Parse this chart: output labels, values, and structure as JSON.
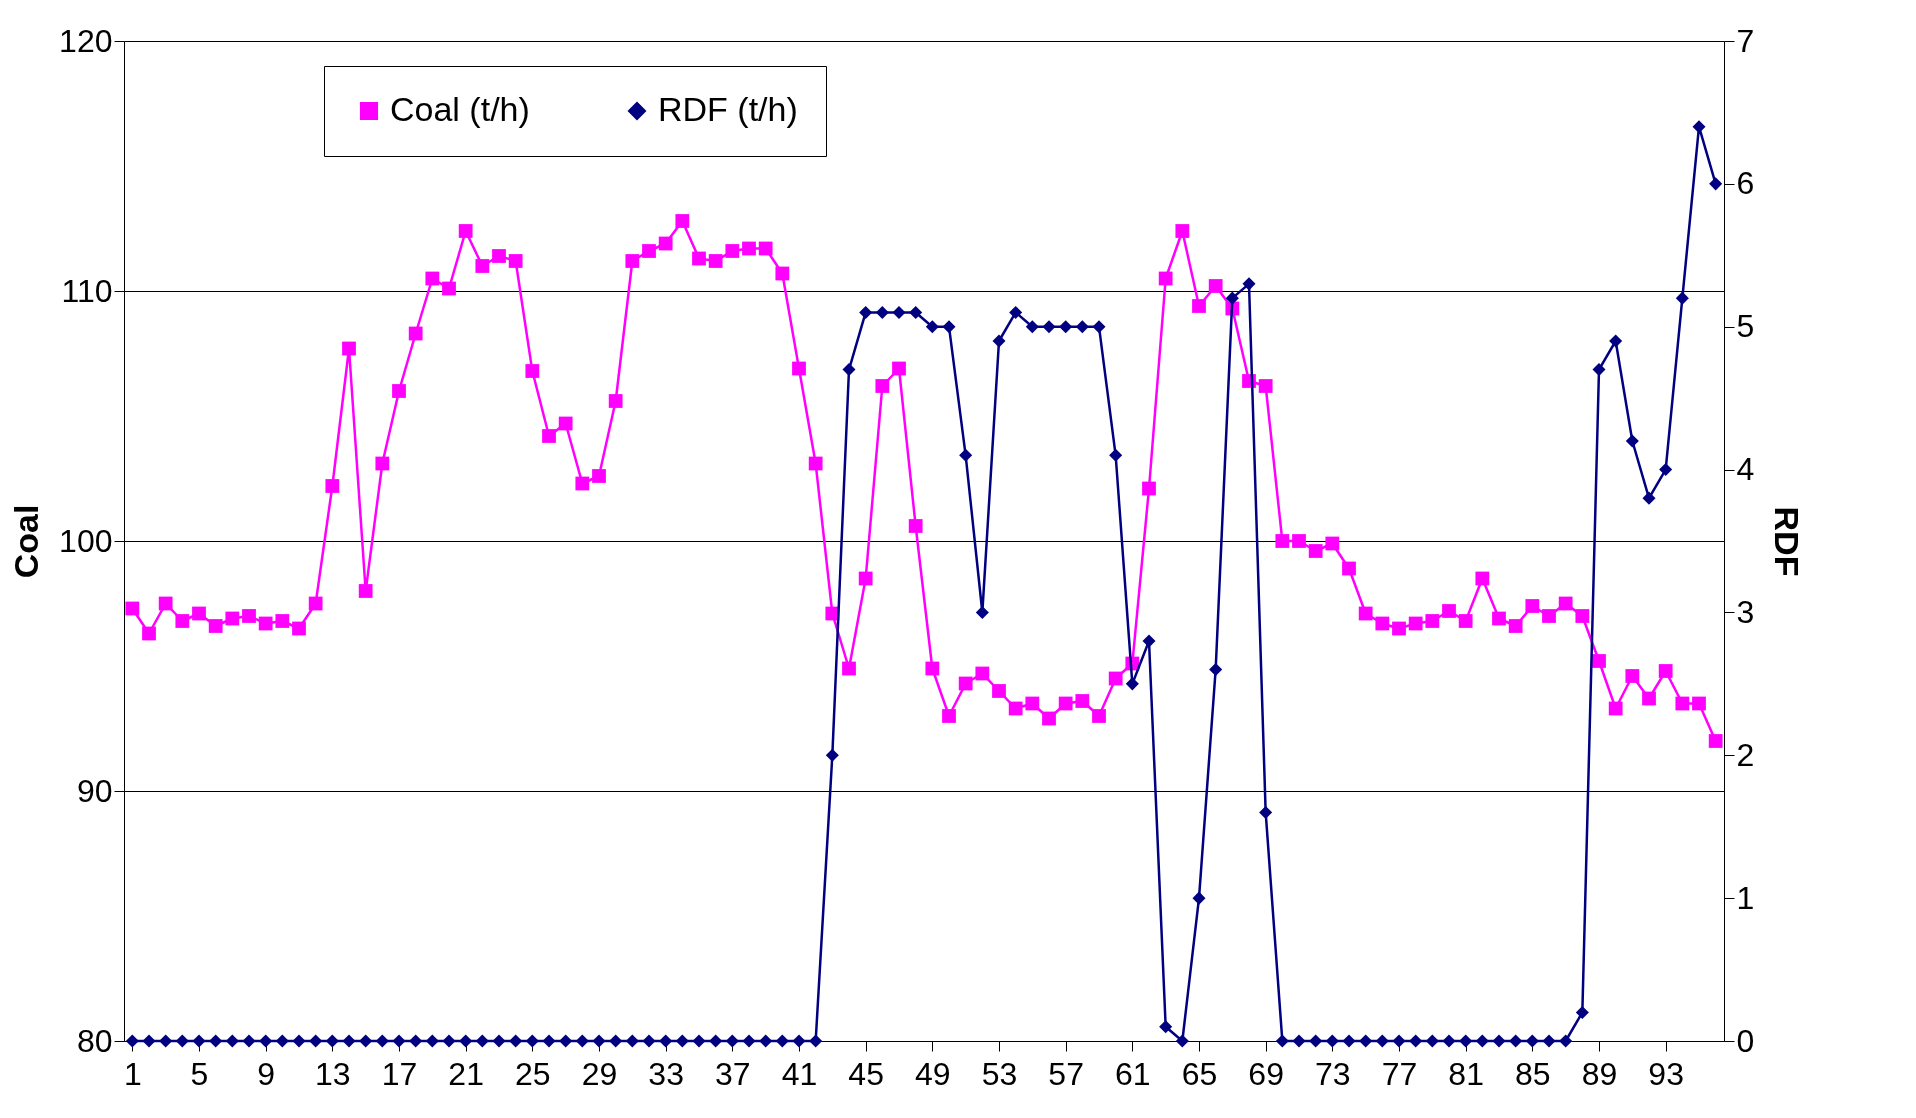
{
  "chart_data": {
    "type": "line",
    "x": [
      1,
      2,
      3,
      4,
      5,
      6,
      7,
      8,
      9,
      10,
      11,
      12,
      13,
      14,
      15,
      16,
      17,
      18,
      19,
      20,
      21,
      22,
      23,
      24,
      25,
      26,
      27,
      28,
      29,
      30,
      31,
      32,
      33,
      34,
      35,
      36,
      37,
      38,
      39,
      40,
      41,
      42,
      43,
      44,
      45,
      46,
      47,
      48,
      49,
      50,
      51,
      52,
      53,
      54,
      55,
      56,
      57,
      58,
      59,
      60,
      61,
      62,
      63,
      64,
      65,
      66,
      67,
      68,
      69,
      70,
      71,
      72,
      73,
      74,
      75,
      76,
      77,
      78,
      79,
      80,
      81,
      82,
      83,
      84,
      85,
      86,
      87,
      88,
      89,
      90,
      91,
      92,
      93,
      94,
      95,
      96
    ],
    "xlim": [
      0.5,
      96.5
    ],
    "xticks": [
      1,
      5,
      9,
      13,
      17,
      21,
      25,
      29,
      33,
      37,
      41,
      45,
      49,
      53,
      57,
      61,
      65,
      69,
      73,
      77,
      81,
      85,
      89,
      93
    ],
    "ylabel": "Coal",
    "y2label": "RDF",
    "ylim": [
      80,
      120
    ],
    "yticks": [
      80,
      90,
      100,
      110,
      120
    ],
    "y2lim": [
      0,
      7
    ],
    "y2ticks": [
      0,
      1,
      2,
      3,
      4,
      5,
      6,
      7
    ],
    "grid": "y",
    "legend": "top",
    "series": [
      {
        "name": "Coal (t/h)",
        "color": "#ff00ff",
        "marker": "square",
        "values": [
          97.3,
          96.3,
          97.5,
          96.8,
          97.1,
          96.6,
          96.9,
          97.0,
          96.7,
          96.8,
          96.5,
          97.5,
          102.2,
          107.7,
          98.0,
          103.1,
          106.0,
          108.3,
          110.5,
          110.1,
          112.4,
          111.0,
          111.4,
          111.2,
          106.8,
          104.2,
          104.7,
          102.3,
          102.6,
          105.6,
          111.2,
          111.6,
          111.9,
          112.8,
          111.3,
          111.2,
          111.6,
          111.7,
          111.7,
          110.7,
          106.9,
          103.1,
          97.1,
          94.9,
          98.5,
          106.2,
          106.9,
          100.6,
          94.9,
          93.0,
          94.3,
          94.7,
          94.0,
          93.3,
          93.5,
          92.9,
          93.5,
          93.6,
          93.0,
          94.5,
          95.1,
          102.1,
          110.5,
          112.4,
          109.4,
          110.2,
          109.3,
          106.4,
          106.2,
          100.0,
          100.0,
          99.6,
          99.9,
          98.9,
          97.1,
          96.7,
          96.5,
          96.7,
          96.8,
          97.2,
          96.8,
          98.5,
          96.9,
          96.6,
          97.4,
          97.0,
          97.5,
          97.0,
          95.2,
          93.3,
          94.6,
          93.7,
          94.8,
          93.5,
          93.5,
          92.0
        ]
      },
      {
        "name": "RDF (t/h)",
        "color": "#000080",
        "marker": "diamond",
        "axis": "y2",
        "values": [
          0,
          0,
          0,
          0,
          0,
          0,
          0,
          0,
          0,
          0,
          0,
          0,
          0,
          0,
          0,
          0,
          0,
          0,
          0,
          0,
          0,
          0,
          0,
          0,
          0,
          0,
          0,
          0,
          0,
          0,
          0,
          0,
          0,
          0,
          0,
          0,
          0,
          0,
          0,
          0,
          0,
          0,
          2.0,
          4.7,
          5.1,
          5.1,
          5.1,
          5.1,
          5.0,
          5.0,
          4.1,
          3.0,
          4.9,
          5.1,
          5.0,
          5.0,
          5.0,
          5.0,
          5.0,
          4.1,
          2.5,
          2.8,
          0.1,
          0,
          1.0,
          2.6,
          5.2,
          5.3,
          1.6,
          0,
          0,
          0,
          0,
          0,
          0,
          0,
          0,
          0,
          0,
          0,
          0,
          0,
          0,
          0,
          0,
          0,
          0,
          0.2,
          4.7,
          4.9,
          4.2,
          3.8,
          4.0,
          5.2,
          6.4,
          6.0
        ]
      }
    ]
  }
}
